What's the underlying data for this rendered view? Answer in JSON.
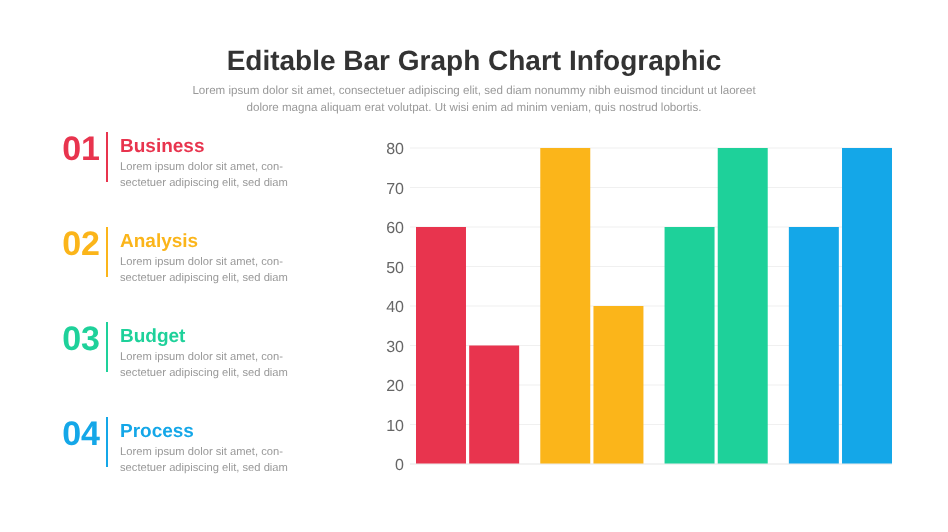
{
  "chart_data": {
    "type": "bar",
    "title": "Editable Bar Graph Chart Infographic",
    "subtitle": "Lorem ipsum dolor sit amet, consectetuer adipiscing elit, sed diam nonummy nibh euismod tincidunt ut laoreet dolore magna aliquam erat volutpat. Ut wisi enim ad minim veniam, quis nostrud lobortis.",
    "categories": [
      null,
      null,
      null,
      null
    ],
    "series": [
      {
        "values": [
          60,
          80,
          60,
          60
        ],
        "colors": [
          "#e8344e",
          "#fbb51a",
          "#1ed19a",
          "#14a7e8"
        ]
      },
      {
        "values": [
          30,
          40,
          80,
          80
        ],
        "colors": [
          "#e8344e",
          "#fbb51a",
          "#1ed19a",
          "#14a7e8"
        ]
      }
    ],
    "ylim": [
      0,
      80
    ],
    "yticks": [
      0,
      10,
      20,
      30,
      40,
      50,
      60,
      70,
      80
    ],
    "grid": "y",
    "annotations": [
      "01",
      "Business",
      "Lorem ipsum dolor sit amet, con-",
      "sectetuer adipiscing elit, sed diam",
      "02",
      "Analysis",
      "Lorem ipsum dolor sit amet, con-",
      "sectetuer adipiscing elit, sed diam",
      "03",
      "Budget",
      "Lorem ipsum dolor sit amet, con-",
      "sectetuer adipiscing elit, sed diam",
      "04",
      "Process",
      "Lorem ipsum dolor sit amet, con-",
      "sectetuer adipiscing elit, sed diam"
    ]
  }
}
